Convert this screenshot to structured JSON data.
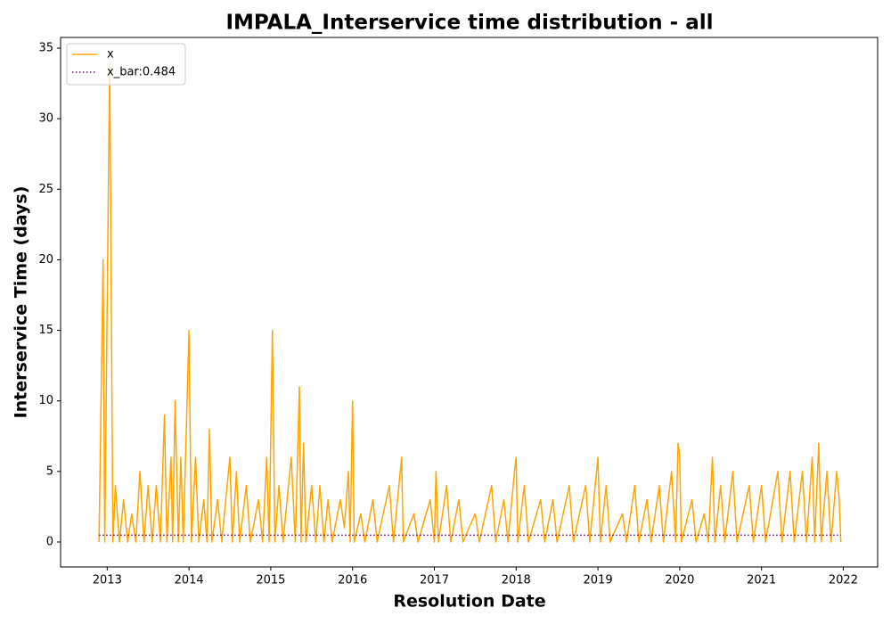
{
  "chart_data": {
    "type": "line",
    "title": "IMPALA_Interservice time distribution - all",
    "x_label": "Resolution Date",
    "y_label": "Interservice Time (days)",
    "xlim": [
      2012.43,
      2022.42
    ],
    "xticks": [
      2013,
      2014,
      2015,
      2016,
      2017,
      2018,
      2019,
      2020,
      2021,
      2022
    ],
    "ylim": [
      -1.77,
      35.76
    ],
    "yticks": [
      0,
      5,
      10,
      15,
      20,
      25,
      30,
      35
    ],
    "grid": false,
    "legend": "upper left",
    "series": [
      {
        "name": "x",
        "color": "#ffa500",
        "style": "solid",
        "x": [
          2012.9,
          2012.95,
          2012.97,
          2013.03,
          2013.07,
          2013.1,
          2013.15,
          2013.2,
          2013.25,
          2013.3,
          2013.35,
          2013.4,
          2013.45,
          2013.5,
          2013.55,
          2013.6,
          2013.65,
          2013.7,
          2013.73,
          2013.78,
          2013.8,
          2013.83,
          2013.87,
          2013.9,
          2013.93,
          2014.0,
          2014.03,
          2014.08,
          2014.12,
          2014.18,
          2014.22,
          2014.25,
          2014.28,
          2014.35,
          2014.4,
          2014.5,
          2014.53,
          2014.58,
          2014.62,
          2014.7,
          2014.75,
          2014.85,
          2014.9,
          2014.95,
          2014.98,
          2015.02,
          2015.05,
          2015.1,
          2015.15,
          2015.25,
          2015.3,
          2015.35,
          2015.37,
          2015.4,
          2015.43,
          2015.5,
          2015.55,
          2015.6,
          2015.65,
          2015.7,
          2015.75,
          2015.85,
          2015.9,
          2015.95,
          2015.97,
          2016.0,
          2016.02,
          2016.1,
          2016.15,
          2016.25,
          2016.3,
          2016.45,
          2016.5,
          2016.6,
          2016.62,
          2016.75,
          2016.8,
          2016.95,
          2017.0,
          2017.02,
          2017.05,
          2017.15,
          2017.2,
          2017.3,
          2017.35,
          2017.5,
          2017.55,
          2017.7,
          2017.75,
          2017.85,
          2017.9,
          2017.98,
          2018.0,
          2018.02,
          2018.1,
          2018.15,
          2018.3,
          2018.35,
          2018.45,
          2018.5,
          2018.65,
          2018.7,
          2018.85,
          2018.9,
          2019.0,
          2019.03,
          2019.1,
          2019.15,
          2019.3,
          2019.35,
          2019.45,
          2019.5,
          2019.6,
          2019.65,
          2019.75,
          2019.8,
          2019.9,
          2019.95,
          2019.98,
          2020.0,
          2020.02,
          2020.15,
          2020.2,
          2020.3,
          2020.35,
          2020.4,
          2020.43,
          2020.5,
          2020.55,
          2020.65,
          2020.7,
          2020.85,
          2020.9,
          2021.0,
          2021.05,
          2021.2,
          2021.25,
          2021.35,
          2021.4,
          2021.5,
          2021.55,
          2021.62,
          2021.65,
          2021.7,
          2021.73,
          2021.8,
          2021.85,
          2021.92,
          2021.95,
          2021.97
        ],
        "values": [
          0,
          20,
          0,
          34,
          0,
          4,
          0,
          3,
          0,
          2,
          0,
          5,
          0,
          4,
          0,
          4,
          0,
          9,
          0,
          6,
          0,
          10,
          0,
          6,
          0,
          15,
          0,
          6,
          0,
          3,
          0,
          8,
          0,
          3,
          0,
          6,
          0,
          5,
          0,
          4,
          0,
          3,
          0,
          6,
          0,
          15,
          0,
          4,
          0,
          6,
          0,
          11,
          0,
          7,
          0,
          4,
          0,
          4,
          0,
          3,
          0,
          3,
          1,
          5,
          0,
          10,
          0,
          2,
          0,
          3,
          0,
          4,
          0,
          6,
          0,
          2,
          0,
          3,
          0,
          5,
          0,
          4,
          0,
          3,
          0,
          2,
          0,
          4,
          0,
          3,
          0,
          5,
          6,
          0,
          4,
          0,
          3,
          0,
          3,
          0,
          4,
          0,
          4,
          0,
          6,
          0,
          4,
          0,
          2,
          0,
          4,
          0,
          3,
          0,
          4,
          0,
          5,
          0,
          7,
          6,
          0,
          3,
          0,
          2,
          0,
          6,
          0,
          4,
          0,
          5,
          0,
          4,
          0,
          4,
          0,
          5,
          0,
          5,
          0,
          5,
          0,
          6,
          0,
          7,
          0,
          5,
          0,
          5,
          3,
          0
        ]
      },
      {
        "name": "x_bar:0.484",
        "color": "#800080",
        "style": "dotted",
        "x": [
          2012.9,
          2021.97
        ],
        "values": [
          0.484,
          0.484
        ]
      }
    ]
  }
}
